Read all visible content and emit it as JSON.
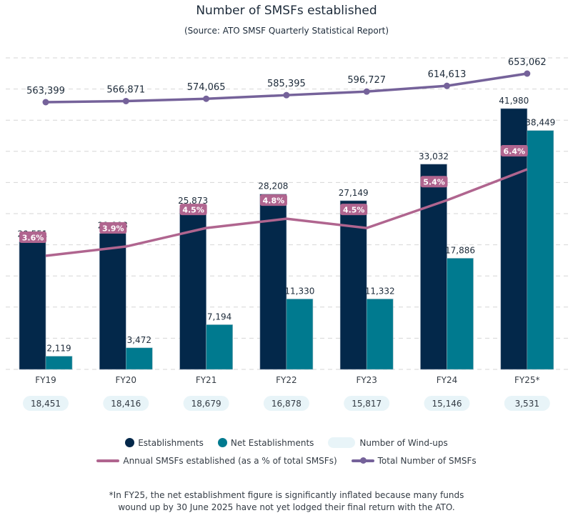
{
  "header": {
    "title": "Number of SMSFs established",
    "subtitle": "(Source: ATO SMSF Quarterly Statistical Report)"
  },
  "colors": {
    "establishments": "#03284a",
    "net_establishments": "#007a8f",
    "wind_ups_pill": "#e8f4f8",
    "pct_line": "#b0658f",
    "total_line": "#75629a",
    "grid": "#d6d6d6",
    "text": "#1d2b3a"
  },
  "chart_data": {
    "type": "bar",
    "title": "Number of SMSFs established",
    "subtitle": "(Source: ATO SMSF Quarterly Statistical Report)",
    "xlabel": "",
    "ylabel": "",
    "grid": true,
    "categories": [
      "FY19",
      "FY20",
      "FY21",
      "FY22",
      "FY23",
      "FY24",
      "FY25*"
    ],
    "bar_ylim": [
      0,
      42000
    ],
    "series": [
      {
        "name": "Establishments",
        "kind": "bar",
        "values": [
          20551,
          21888,
          25873,
          28208,
          27149,
          33032,
          41980
        ],
        "labels": [
          "20,551",
          "21,888",
          "25,873",
          "28,208",
          "27,149",
          "33,032",
          "41,980"
        ]
      },
      {
        "name": "Net Establishments",
        "kind": "bar",
        "values": [
          2119,
          3472,
          7194,
          11330,
          11332,
          17886,
          38449
        ],
        "labels": [
          "2,119",
          "3,472",
          "7,194",
          "11,330",
          "11,332",
          "17,886",
          "38,449"
        ]
      },
      {
        "name": "Number of Wind-ups",
        "kind": "pill-row",
        "values": [
          18451,
          18416,
          18679,
          16878,
          15817,
          15146,
          3531
        ],
        "labels": [
          "18,451",
          "18,416",
          "18,679",
          "16,878",
          "15,817",
          "15,146",
          "3,531"
        ]
      },
      {
        "name": "Annual SMSFs established (as a % of total SMSFs)",
        "kind": "line",
        "values": [
          3.6,
          3.9,
          4.5,
          4.8,
          4.5,
          5.4,
          6.4
        ],
        "labels": [
          "3.6%",
          "3.9%",
          "4.5%",
          "4.8%",
          "4.5%",
          "5.4%",
          "6.4%"
        ]
      },
      {
        "name": "Total Number of SMSFs",
        "kind": "line-marker",
        "values": [
          563399,
          566871,
          574065,
          585395,
          596727,
          614613,
          653062
        ],
        "labels": [
          "563,399",
          "566,871",
          "574,065",
          "585,395",
          "596,727",
          "614,613",
          "653,062"
        ]
      }
    ],
    "legend": {
      "placement": "bottom",
      "entries": [
        "Establishments",
        "Net Establishments",
        "Number of Wind-ups",
        "Annual SMSFs established (as a % of total SMSFs)",
        "Total Number of SMSFs"
      ]
    }
  },
  "legend": {
    "establishments": "Establishments",
    "net_establishments": "Net Establishments",
    "wind_ups": "Number of Wind-ups",
    "pct_line": "Annual SMSFs established (as a % of total SMSFs)",
    "total_line": "Total Number of SMSFs"
  },
  "footnote": {
    "line1": "*In FY25, the net establishment figure is significantly inflated because many funds",
    "line2": "wound up by 30 June 2025 have not yet lodged their final return with the ATO."
  }
}
